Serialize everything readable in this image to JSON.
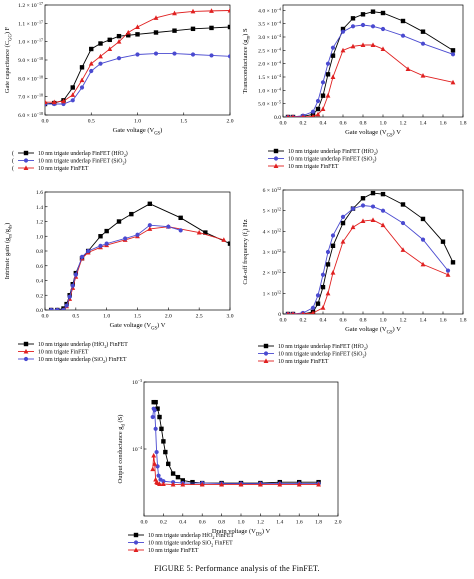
{
  "caption": "FIGURE 5: Performance analysis of the FinFET.",
  "colors": {
    "hfo2": "#000000",
    "sio2": "#4a4ad0",
    "finfet": "#e02020"
  },
  "chart_data": [
    {
      "type": "line",
      "title": "",
      "xlabel": "Gate voltage (V_GS)",
      "ylabel": "Gate capacitance (C_GG) F",
      "xlim": [
        0,
        2.0
      ],
      "ylim": [
        6e-18,
        1.2e-17
      ],
      "xticks": [
        "0.0",
        "0.5",
        "1.0",
        "1.5",
        "2.0"
      ],
      "yticks": [
        "6.0 × 10^−18",
        "7.0 × 10^−18",
        "8.0 × 10^−18",
        "9.0 × 10^−18",
        "1.0 × 10^−17",
        "1.1 × 10^−17",
        "1.2 × 10^−17"
      ],
      "series": [
        {
          "name": "10 nm trigate underlap FinFET (HfO2)",
          "color": "#000000",
          "marker": "square",
          "x": [
            0,
            0.1,
            0.2,
            0.3,
            0.4,
            0.5,
            0.6,
            0.7,
            0.8,
            0.9,
            1.0,
            1.2,
            1.4,
            1.6,
            1.8,
            2.0
          ],
          "y": [
            6.6e-18,
            6.65e-18,
            6.8e-18,
            7.5e-18,
            8.6e-18,
            9.6e-18,
            9.9e-18,
            1.01e-17,
            1.03e-17,
            1.035e-17,
            1.04e-17,
            1.05e-17,
            1.06e-17,
            1.07e-17,
            1.075e-17,
            1.08e-17
          ]
        },
        {
          "name": "10 nm trigate underlap FinFET (SiO2)",
          "color": "#4a4ad0",
          "marker": "circle",
          "x": [
            0,
            0.1,
            0.2,
            0.3,
            0.4,
            0.5,
            0.6,
            0.8,
            1.0,
            1.2,
            1.4,
            1.6,
            1.8,
            2.0
          ],
          "y": [
            6.6e-18,
            6.6e-18,
            6.6e-18,
            6.8e-18,
            7.5e-18,
            8.4e-18,
            8.8e-18,
            9.1e-18,
            9.3e-18,
            9.35e-18,
            9.35e-18,
            9.3e-18,
            9.25e-18,
            9.2e-18
          ]
        },
        {
          "name": "10 nm trigate FinFET",
          "color": "#e02020",
          "marker": "triangle",
          "x": [
            0,
            0.1,
            0.2,
            0.3,
            0.4,
            0.5,
            0.6,
            0.7,
            0.8,
            0.9,
            1.0,
            1.2,
            1.4,
            1.6,
            1.8,
            2.0
          ],
          "y": [
            6.7e-18,
            6.7e-18,
            6.75e-18,
            7.1e-18,
            7.9e-18,
            8.8e-18,
            9.2e-18,
            9.6e-18,
            1e-17,
            1.05e-17,
            1.08e-17,
            1.13e-17,
            1.155e-17,
            1.165e-17,
            1.168e-17,
            1.17e-17
          ]
        }
      ],
      "legend": {
        "placement": "bottom",
        "entries": [
          "10 nm trigate underlap FinFET (HfO2)",
          "10 nm trigate underlap FinFET (SiO2)",
          "10 nm trigate FinFET"
        ],
        "prefix": [
          "(",
          "(",
          "("
        ]
      }
    },
    {
      "type": "line",
      "title": "",
      "xlabel": "Gate voltage (V_GS) V",
      "ylabel": "Transconductance (g_m) S",
      "xlim": [
        0,
        1.8
      ],
      "ylim": [
        0,
        0.00042
      ],
      "xticks": [
        "0.0",
        "0.2",
        "0.4",
        "0.6",
        "0.8",
        "1.0",
        "1.2",
        "1.4",
        "1.6",
        "1.8"
      ],
      "yticks": [
        "0.0",
        "5.0 × 10^−5",
        "1.0 × 10^−4",
        "1.5 × 10^−4",
        "2.0 × 10^−4",
        "2.5 × 10^−4",
        "3.0 × 10^−4",
        "3.5 × 10^−4",
        "4.0 × 10^−4"
      ],
      "series": [
        {
          "name": "10 nm trigate underlap FinFET (HfO2)",
          "color": "#000000",
          "marker": "square",
          "x": [
            0.05,
            0.1,
            0.2,
            0.3,
            0.35,
            0.4,
            0.45,
            0.5,
            0.6,
            0.7,
            0.8,
            0.9,
            1.0,
            1.2,
            1.4,
            1.7
          ],
          "y": [
            0.0,
            0.0,
            2e-06,
            1e-05,
            3e-05,
            8e-05,
            0.00016,
            0.00023,
            0.00033,
            0.00037,
            0.000385,
            0.000395,
            0.00039,
            0.00036,
            0.00032,
            0.00025
          ]
        },
        {
          "name": "10 nm trigate underlap FinFET (SiO2)",
          "color": "#4a4ad0",
          "marker": "circle",
          "x": [
            0.05,
            0.1,
            0.2,
            0.3,
            0.35,
            0.4,
            0.45,
            0.5,
            0.6,
            0.7,
            0.8,
            0.9,
            1.0,
            1.2,
            1.4,
            1.7
          ],
          "y": [
            0.0,
            0.0,
            5e-06,
            2e-05,
            6e-05,
            0.00013,
            0.0002,
            0.00026,
            0.00032,
            0.00034,
            0.000345,
            0.00034,
            0.00033,
            0.000305,
            0.000275,
            0.000235
          ]
        },
        {
          "name": "10 nm trigate FinFET",
          "color": "#e02020",
          "marker": "triangle",
          "x": [
            0.05,
            0.1,
            0.2,
            0.3,
            0.35,
            0.4,
            0.45,
            0.5,
            0.6,
            0.7,
            0.8,
            0.9,
            1.0,
            1.25,
            1.4,
            1.7
          ],
          "y": [
            0.0,
            0.0,
            0.0,
            2e-06,
            1e-05,
            3e-05,
            8e-05,
            0.00015,
            0.00025,
            0.000265,
            0.00027,
            0.00027,
            0.000255,
            0.00018,
            0.000155,
            0.00013
          ]
        }
      ],
      "legend": {
        "placement": "bottom",
        "entries": [
          "10 nm trigate underlap FinFET (HfO2)",
          "10 nm trigate underlap FinFET (SiO2)",
          "10 nm trigate FinFET"
        ]
      }
    },
    {
      "type": "line",
      "title": "",
      "xlabel": "Gate voltage (V_GS) V",
      "ylabel": "Intrinsic gain (g_m/g_ds)",
      "xlim": [
        0,
        3.0
      ],
      "ylim": [
        0,
        1.6
      ],
      "xticks": [
        "0.0",
        "0.5",
        "1.0",
        "1.5",
        "2.0",
        "2.5",
        "3.0"
      ],
      "yticks": [
        "0.0",
        "0.2",
        "0.4",
        "0.6",
        "0.8",
        "1.0",
        "1.2",
        "1.4",
        "1.6"
      ],
      "series": [
        {
          "name": "10 nm trigate underlap (HfO2) FinFET",
          "color": "#000000",
          "marker": "square",
          "x": [
            0.1,
            0.2,
            0.3,
            0.35,
            0.4,
            0.45,
            0.5,
            0.6,
            0.7,
            0.9,
            1.0,
            1.2,
            1.4,
            1.7,
            2.2,
            2.6,
            3.0
          ],
          "y": [
            0.0,
            0.0,
            0.02,
            0.08,
            0.2,
            0.35,
            0.5,
            0.7,
            0.8,
            1.0,
            1.07,
            1.2,
            1.3,
            1.44,
            1.25,
            1.05,
            0.9
          ]
        },
        {
          "name": "10 nm trigate FinFET",
          "color": "#e02020",
          "marker": "triangle",
          "x": [
            0.1,
            0.2,
            0.3,
            0.35,
            0.4,
            0.45,
            0.5,
            0.6,
            0.7,
            0.9,
            1.0,
            1.3,
            1.5,
            1.7,
            2.0,
            2.5,
            2.9
          ],
          "y": [
            0.0,
            0.0,
            0.0,
            0.05,
            0.15,
            0.3,
            0.45,
            0.7,
            0.78,
            0.85,
            0.88,
            0.95,
            1.0,
            1.1,
            1.13,
            1.05,
            0.95
          ]
        },
        {
          "name": "10 nm trigate underlap (SiO2) FinFET",
          "color": "#4a4ad0",
          "marker": "circle",
          "x": [
            0.1,
            0.2,
            0.3,
            0.35,
            0.4,
            0.45,
            0.5,
            0.6,
            0.7,
            0.9,
            1.0,
            1.3,
            1.5,
            1.7,
            2.0,
            2.2
          ],
          "y": [
            0.0,
            0.0,
            0.0,
            0.06,
            0.18,
            0.33,
            0.48,
            0.72,
            0.8,
            0.87,
            0.9,
            0.97,
            1.02,
            1.15,
            1.13,
            1.08
          ]
        }
      ],
      "legend": {
        "placement": "bottom",
        "entries": [
          "10 nm trigate underlap (HfO2) FinFET",
          "10 nm trigate FinFET",
          "10 nm trigate underlap (SiO2) FinFET"
        ]
      }
    },
    {
      "type": "line",
      "title": "",
      "xlabel": "Gate voltage (V_GS) V",
      "ylabel": "Cut-off frequency (f_t) Hz",
      "xlim": [
        0,
        1.8
      ],
      "ylim": [
        0,
        6000000000000.0
      ],
      "xticks": [
        "0.0",
        "0.2",
        "0.4",
        "0.6",
        "0.8",
        "1.0",
        "1.2",
        "1.4",
        "1.6",
        "1.8"
      ],
      "yticks": [
        "0",
        "1 × 10^12",
        "2 × 10^12",
        "3 × 10^12",
        "4 × 10^12",
        "5 × 10^12",
        "6 × 10^12"
      ],
      "series": [
        {
          "name": "10 nm trigate underlap FinFET (HfO2)",
          "color": "#000000",
          "marker": "square",
          "x": [
            0.05,
            0.1,
            0.2,
            0.3,
            0.35,
            0.4,
            0.45,
            0.5,
            0.6,
            0.7,
            0.8,
            0.9,
            1.0,
            1.2,
            1.4,
            1.6,
            1.7
          ],
          "y": [
            0.0,
            0.0,
            0.0,
            100000000000.0,
            500000000000.0,
            1300000000000.0,
            2400000000000.0,
            3300000000000.0,
            4400000000000.0,
            5100000000000.0,
            5600000000000.0,
            5850000000000.0,
            5800000000000.0,
            5300000000000.0,
            4600000000000.0,
            3500000000000.0,
            2500000000000.0
          ]
        },
        {
          "name": "10 nm trigate underlap FinFET (SiO2)",
          "color": "#4a4ad0",
          "marker": "circle",
          "x": [
            0.05,
            0.1,
            0.2,
            0.3,
            0.35,
            0.4,
            0.45,
            0.5,
            0.6,
            0.7,
            0.8,
            0.9,
            1.0,
            1.2,
            1.4,
            1.65
          ],
          "y": [
            0.0,
            0.0,
            50000000000.0,
            300000000000.0,
            900000000000.0,
            1900000000000.0,
            3000000000000.0,
            3800000000000.0,
            4700000000000.0,
            5100000000000.0,
            5250000000000.0,
            5200000000000.0,
            5000000000000.0,
            4400000000000.0,
            3600000000000.0,
            2100000000000.0
          ]
        },
        {
          "name": "10 nm trigate FinFET",
          "color": "#e02020",
          "marker": "triangle",
          "x": [
            0.05,
            0.1,
            0.2,
            0.3,
            0.4,
            0.45,
            0.5,
            0.6,
            0.7,
            0.8,
            0.9,
            1.0,
            1.2,
            1.4,
            1.65
          ],
          "y": [
            0.0,
            0.0,
            0.0,
            50000000000.0,
            300000000000.0,
            1000000000000.0,
            2000000000000.0,
            3500000000000.0,
            4200000000000.0,
            4500000000000.0,
            4550000000000.0,
            4300000000000.0,
            3100000000000.0,
            2400000000000.0,
            1900000000000.0
          ]
        }
      ],
      "legend": {
        "placement": "bottom",
        "entries": [
          "10 nm trigate underlap FinFET (HfO2)",
          "10 nm trigate underlap FinFET (SiO2)",
          "10 nm trigate FinFET"
        ]
      }
    },
    {
      "type": "line",
      "title": "",
      "xlabel": "Drain voltage (V_DS) V",
      "ylabel": "Output conductance g_d (S)",
      "xscale": "log-y",
      "xlim": [
        0.0,
        2.0
      ],
      "ylim": [
        1e-05,
        0.001
      ],
      "xticks": [
        "0.0",
        "0.2",
        "0.4",
        "0.6",
        "0.8",
        "1.0",
        "1.2",
        "1.4",
        "1.6",
        "1.8",
        "2.0"
      ],
      "yticks": [
        "10^−3",
        "10^−4"
      ],
      "series": [
        {
          "name": "10 nm trigate underlap HfO2 FinFET",
          "color": "#000000",
          "marker": "square",
          "x": [
            0.1,
            0.12,
            0.14,
            0.16,
            0.18,
            0.2,
            0.22,
            0.25,
            0.3,
            0.35,
            0.4,
            0.5,
            0.6,
            0.8,
            1.0,
            1.2,
            1.4,
            1.6,
            1.8
          ],
          "y": [
            0.0005,
            0.0005,
            0.0004,
            0.0003,
            0.0002,
            0.00013,
            9e-05,
            6e-05,
            4.3e-05,
            3.8e-05,
            3.4e-05,
            3.2e-05,
            3.1e-05,
            3.1e-05,
            3.1e-05,
            3.1e-05,
            3.2e-05,
            3.2e-05,
            3.2e-05
          ]
        },
        {
          "name": "10 nm trigate underlap SiO2 FinFET",
          "color": "#4a4ad0",
          "marker": "circle",
          "x": [
            0.09,
            0.1,
            0.11,
            0.12,
            0.13,
            0.14,
            0.15,
            0.17,
            0.2,
            0.3,
            0.4,
            0.6,
            0.8,
            1.0,
            1.2,
            1.4,
            1.6,
            1.8
          ],
          "y": [
            0.0003,
            0.0004,
            0.00038,
            0.0002,
            9e-05,
            5.5e-05,
            4e-05,
            3.5e-05,
            3.3e-05,
            3.2e-05,
            3.1e-05,
            3.1e-05,
            3.05e-05,
            3.05e-05,
            3.05e-05,
            3.05e-05,
            3.05e-05,
            3.05e-05
          ]
        },
        {
          "name": "10 nm trigate FinFET",
          "color": "#e02020",
          "marker": "triangle",
          "x": [
            0.09,
            0.1,
            0.11,
            0.12,
            0.13,
            0.14,
            0.16,
            0.2,
            0.3,
            0.4,
            0.6,
            0.8,
            1.0,
            1.2,
            1.4,
            1.6,
            1.8
          ],
          "y": [
            5e-05,
            8e-05,
            6e-05,
            3.5e-05,
            3.2e-05,
            3.1e-05,
            3e-05,
            3e-05,
            2.95e-05,
            2.95e-05,
            2.95e-05,
            2.95e-05,
            2.95e-05,
            2.95e-05,
            2.95e-05,
            2.95e-05,
            2.95e-05
          ]
        }
      ],
      "legend": {
        "placement": "bottom",
        "entries": [
          "10 nm trigate underlap HfO2 FinFET",
          "10 nm trigate underlap SiO2 FinFET",
          "10 nm trigate FinFET"
        ]
      }
    }
  ]
}
